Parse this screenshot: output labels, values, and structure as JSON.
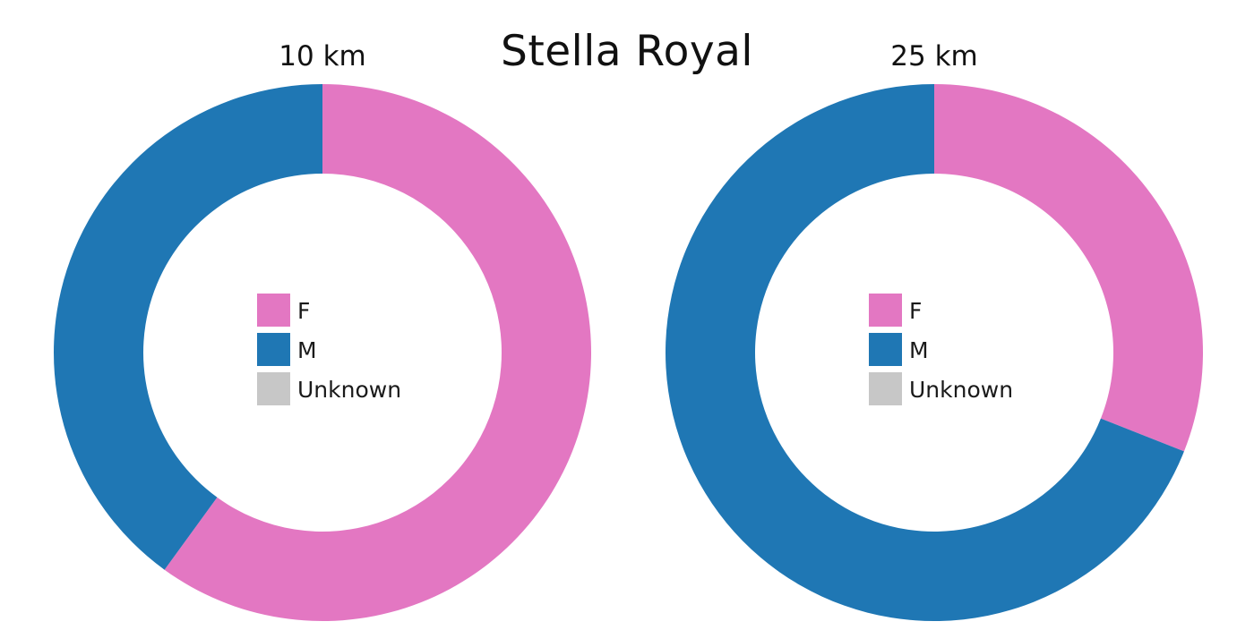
{
  "title": "Stella Royal",
  "chart_data": [
    {
      "type": "pie",
      "subtitle": "10 km",
      "categories": [
        "F",
        "M",
        "Unknown"
      ],
      "values": [
        60,
        40,
        0
      ],
      "colors": [
        "#e377c2",
        "#1f77b4",
        "#c7c7c7"
      ],
      "legend": "center"
    },
    {
      "type": "pie",
      "subtitle": "25 km",
      "categories": [
        "F",
        "M",
        "Unknown"
      ],
      "values": [
        31,
        69,
        0
      ],
      "colors": [
        "#e377c2",
        "#1f77b4",
        "#c7c7c7"
      ],
      "legend": "center"
    }
  ]
}
